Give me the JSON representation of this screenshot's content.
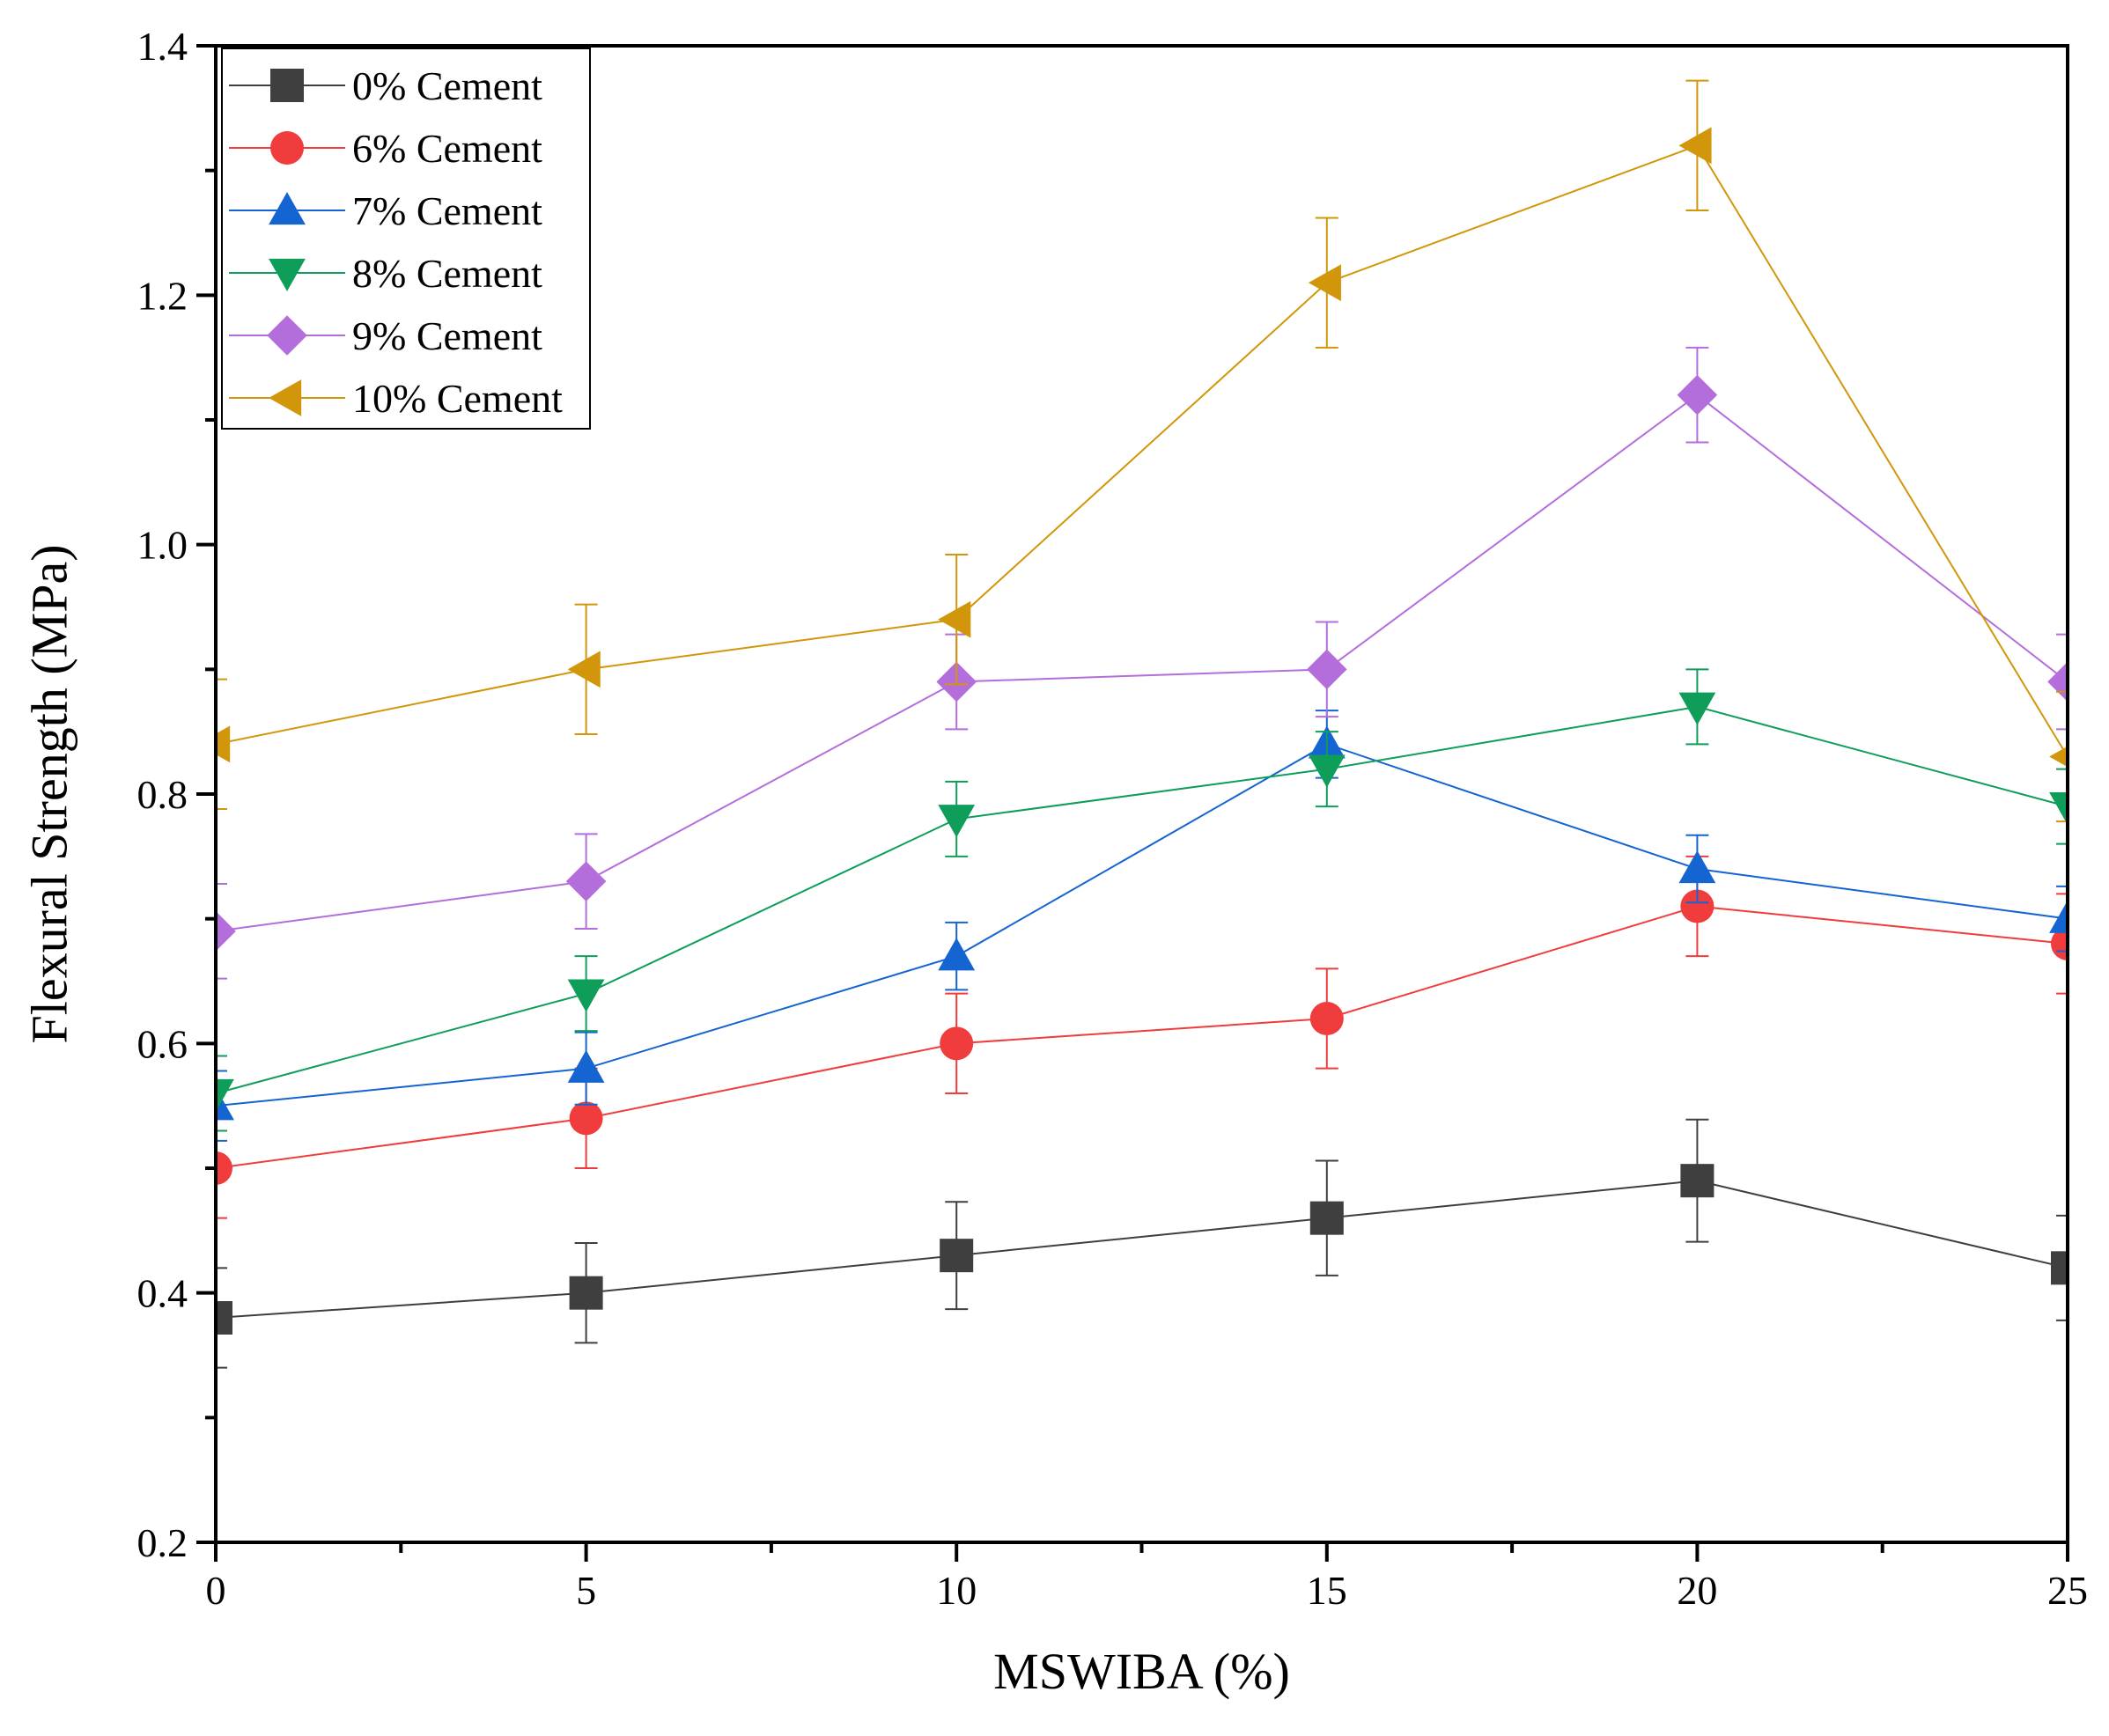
{
  "chart_data": {
    "type": "line",
    "title": "",
    "xlabel": "MSWIBA (%)",
    "ylabel": "Flexural Strength (MPa)",
    "xlim": [
      0,
      25
    ],
    "ylim": [
      0.2,
      1.4
    ],
    "xticks": [
      "0",
      "5",
      "10",
      "15",
      "20",
      "25"
    ],
    "yticks": [
      "0.2",
      "0.4",
      "0.6",
      "0.8",
      "1.0",
      "1.2",
      "1.4"
    ],
    "grid": false,
    "legend_position": "top-left",
    "x": [
      0,
      5,
      10,
      15,
      20,
      25
    ],
    "series": [
      {
        "name": "0% Cement",
        "color": "#3f3f3f",
        "marker": "square",
        "values": [
          0.38,
          0.4,
          0.43,
          0.46,
          0.49,
          0.42
        ],
        "errors": [
          0.04,
          0.04,
          0.043,
          0.046,
          0.049,
          0.042
        ]
      },
      {
        "name": "6% Cement",
        "color": "#f03c3c",
        "marker": "circle",
        "values": [
          0.5,
          0.54,
          0.6,
          0.62,
          0.71,
          0.68
        ],
        "errors": [
          0.04,
          0.04,
          0.04,
          0.04,
          0.04,
          0.04
        ]
      },
      {
        "name": "7% Cement",
        "color": "#1464d2",
        "marker": "triangle-up",
        "values": [
          0.55,
          0.58,
          0.67,
          0.84,
          0.74,
          0.7
        ],
        "errors": [
          0.028,
          0.029,
          0.027,
          0.027,
          0.027,
          0.026
        ]
      },
      {
        "name": "8% Cement",
        "color": "#0f9e5a",
        "marker": "triangle-down",
        "values": [
          0.56,
          0.64,
          0.78,
          0.82,
          0.87,
          0.79
        ],
        "errors": [
          0.03,
          0.03,
          0.03,
          0.03,
          0.03,
          0.03
        ]
      },
      {
        "name": "9% Cement",
        "color": "#b46edc",
        "marker": "diamond",
        "values": [
          0.69,
          0.73,
          0.89,
          0.9,
          1.12,
          0.89
        ],
        "errors": [
          0.038,
          0.038,
          0.038,
          0.038,
          0.038,
          0.038
        ]
      },
      {
        "name": "10% Cement",
        "color": "#d2960a",
        "marker": "triangle-left",
        "values": [
          0.84,
          0.9,
          0.94,
          1.21,
          1.32,
          0.83
        ],
        "errors": [
          0.052,
          0.052,
          0.052,
          0.052,
          0.052,
          0.052
        ]
      }
    ]
  }
}
